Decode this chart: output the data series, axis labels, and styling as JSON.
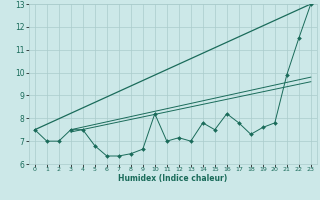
{
  "xlabel": "Humidex (Indice chaleur)",
  "xlim": [
    -0.5,
    23.5
  ],
  "ylim": [
    6,
    13
  ],
  "xticks": [
    0,
    1,
    2,
    3,
    4,
    5,
    6,
    7,
    8,
    9,
    10,
    11,
    12,
    13,
    14,
    15,
    16,
    17,
    18,
    19,
    20,
    21,
    22,
    23
  ],
  "yticks": [
    6,
    7,
    8,
    9,
    10,
    11,
    12,
    13
  ],
  "bg_color": "#cce8e8",
  "grid_color": "#aacccc",
  "line_color": "#1a6b5a",
  "line1_x": [
    0,
    23
  ],
  "line1_y": [
    7.5,
    13.0
  ],
  "line2_x": [
    3,
    23
  ],
  "line2_y": [
    7.5,
    9.8
  ],
  "line3_x": [
    3,
    23
  ],
  "line3_y": [
    7.4,
    9.6
  ],
  "jagged_x": [
    0,
    1,
    2,
    3,
    4,
    5,
    6,
    7,
    8,
    9,
    10,
    11,
    12,
    13,
    14,
    15,
    16,
    17,
    18,
    19,
    20,
    21,
    22,
    23
  ],
  "jagged_y": [
    7.5,
    7.0,
    7.0,
    7.5,
    7.5,
    6.8,
    6.35,
    6.35,
    6.45,
    6.65,
    8.2,
    7.0,
    7.15,
    7.0,
    7.8,
    7.5,
    8.2,
    7.8,
    7.3,
    7.6,
    7.8,
    9.9,
    11.5,
    13.0
  ]
}
